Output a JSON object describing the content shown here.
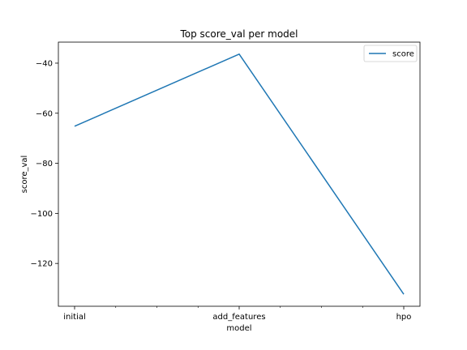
{
  "chart_data": {
    "type": "line",
    "title": "Top score_val per model",
    "xlabel": "model",
    "ylabel": "score_val",
    "categories": [
      "initial",
      "add_features",
      "hpo"
    ],
    "series": [
      {
        "name": "score",
        "values": [
          -65.2,
          -36.4,
          -132.3
        ],
        "color": "#1f77b4"
      }
    ],
    "x_ticks": [
      "initial",
      "add_features",
      "hpo"
    ],
    "y_ticks": [
      -40,
      -60,
      -80,
      -100,
      -120
    ],
    "ylim": [
      -137.1,
      -31.6
    ],
    "grid": false,
    "legend_position": "upper right"
  }
}
